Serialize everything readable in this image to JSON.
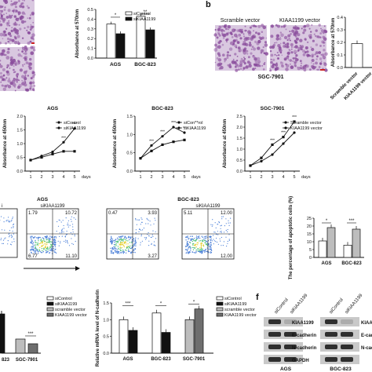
{
  "colors": {
    "axis": "#111",
    "black_bar": "#111",
    "white_bar": "#ffffff",
    "grey_bar": "#bdbdbd",
    "dark_grey_bar": "#6e6e6e",
    "stain": "#8a4d9c",
    "flow_bg": "#cfe4ff",
    "blot_bg": "#c9c9c9",
    "red_bar": "#cc2222"
  },
  "panel_b": {
    "letter": "b",
    "scramble_label": "Scramble vector",
    "kiaa_label": "KIAA1199 vector",
    "cell_label": "SGC-7901"
  },
  "panel_f": {
    "letter": "f",
    "lane1": "siControl",
    "lane2": "siKIAA1199",
    "lane3": "siControl",
    "lane4": "siKIAA1199",
    "band1": "KIAA1199",
    "band2": "E-cadherin",
    "band3": "N-cadherin",
    "band4": "GAPDH",
    "band1r": "KIAA1199",
    "band2r": "E-cadhe",
    "band3r": "N-cadhe",
    "cell1": "AGS",
    "cell2": "BGC-823"
  },
  "flow": {
    "ags_label": "AGS",
    "bgc_label": "BGC-823",
    "ctrl_label": "i",
    "sikiaa_label1": "siKIAA1199",
    "sikiaa_label2": "siKIAA1199",
    "q": [
      {
        "ul": "",
        "ur": "",
        "lr": ""
      },
      {
        "ul": "1.79",
        "ur": "10.72",
        "lr": "11.10",
        "ll": "6.77"
      },
      {
        "ul": "0.47",
        "ur": "3.93",
        "lr": "3.27"
      },
      {
        "ul": "5.11",
        "ur": "12.00",
        "lr": "12.00"
      }
    ]
  },
  "chart_data": [
    {
      "type": "bar",
      "ylabel": "Absorbance at 570nm",
      "categories": [
        "AGS",
        "BGC-823"
      ],
      "ylim": [
        0,
        0.5
      ],
      "ticks": [
        "0.0",
        "0.1",
        "0.2",
        "0.3",
        "0.4",
        "0.5"
      ],
      "series": [
        {
          "name": "siControl",
          "values": [
            0.35,
            0.43
          ]
        },
        {
          "name": "siKIAA1199",
          "values": [
            0.25,
            0.29
          ]
        }
      ],
      "sig": [
        "*",
        "**"
      ]
    },
    {
      "type": "bar",
      "ylabel": "Absorbance at 570nm",
      "categories": [
        "Scramble vector",
        "KIAA1199 vector"
      ],
      "ticks": [
        "0.0",
        "0.1",
        "0.2",
        "0.3",
        "0.4"
      ],
      "ylim": [
        0,
        0.4
      ],
      "values": [
        0.19,
        0.35
      ]
    },
    {
      "type": "line",
      "title": "AGS",
      "ylabel": "Absorbance at 450nm",
      "xlabel": "",
      "x": [
        1,
        2,
        3,
        4,
        5
      ],
      "ylim": [
        0,
        2.0
      ],
      "yticks": [
        "0.0",
        "0.5",
        "1.0",
        "1.5",
        "2.0"
      ],
      "series": [
        {
          "name": "siControl",
          "values": [
            0.4,
            0.55,
            0.7,
            1.05,
            1.55
          ]
        },
        {
          "name": "siKIAA1199",
          "values": [
            0.4,
            0.5,
            0.62,
            0.72,
            0.72
          ]
        }
      ],
      "sig": [
        "***",
        "***"
      ]
    },
    {
      "type": "line",
      "title": "BGC-823",
      "ylabel": "Absorbance at 450nm",
      "x": [
        1,
        2,
        3,
        4,
        5
      ],
      "ylim": [
        0,
        1.5
      ],
      "yticks": [
        "0.0",
        "0.5",
        "1.0",
        "1.5"
      ],
      "series": [
        {
          "name": "siCon**rol",
          "values": [
            0.35,
            0.7,
            0.95,
            1.2,
            1.05
          ]
        },
        {
          "name": "siKIAA1199",
          "values": [
            0.35,
            0.55,
            0.72,
            0.8,
            0.85
          ]
        }
      ],
      "sig": [
        "***",
        "***",
        "***",
        "**"
      ]
    },
    {
      "type": "line",
      "title": "SGC-7901",
      "ylabel": "Absorbance at 450nm",
      "xlabel": "days",
      "x": [
        1,
        2,
        3,
        4,
        5
      ],
      "ylim": [
        0,
        2.5
      ],
      "yticks": [
        "0.0",
        "0.5",
        "1.0",
        "1.5",
        "2.0",
        "2.5"
      ],
      "series": [
        {
          "name": "Scramble vector",
          "values": [
            0.25,
            0.45,
            0.75,
            1.25,
            1.75
          ]
        },
        {
          "name": "KIAA1199 vector",
          "values": [
            0.25,
            0.6,
            1.2,
            1.55,
            2.25
          ]
        }
      ],
      "sig": [
        "***",
        "***",
        "***"
      ]
    },
    {
      "type": "bar",
      "ylabel": "The percentage of apoptotic cells (%)",
      "categories": [
        "AGS",
        "BGC-823"
      ],
      "ylim": [
        0,
        25
      ],
      "yticks": [
        "0",
        "5",
        "10",
        "15",
        "20",
        "25"
      ],
      "series": [
        {
          "name": "siControl",
          "values": [
            10.5,
            7.8
          ]
        },
        {
          "name": "siKIAA1199",
          "values": [
            19,
            18
          ]
        }
      ],
      "sig": [
        "*",
        "***"
      ]
    },
    {
      "type": "bar",
      "title": "",
      "categories": [
        "823",
        "SGC-7901"
      ],
      "legend": [
        "siControl",
        "siKIAA1199",
        "scramble vector",
        "KIAA1199 vector"
      ],
      "sig": [
        "***"
      ]
    },
    {
      "type": "bar",
      "ylabel": "Relative mRNA level of N-cadherin",
      "categories": [
        "AGS",
        "BGC-823",
        "SGC-7901"
      ],
      "ylim": [
        0,
        1.5
      ],
      "yticks": [
        "0.0",
        "0.5",
        "1.0",
        "1.5"
      ],
      "series": [
        {
          "name": "siControl",
          "values": [
            1.0,
            1.2,
            1.0
          ]
        },
        {
          "name": "siKIAA1199",
          "values": [
            0.68,
            0.62,
            1.32
          ]
        }
      ],
      "legend": [
        "siControl",
        "siKIAA1199",
        "scramble vector",
        "KIAA1199 vector"
      ],
      "sig": [
        "***",
        "*",
        "*"
      ],
      "xlabel_days": "days"
    }
  ],
  "misc": {
    "days_label": "days",
    "days_label2": "days",
    "days_label3": "days",
    "x_ticks": [
      "1",
      "2",
      "3",
      "4",
      "5"
    ]
  }
}
